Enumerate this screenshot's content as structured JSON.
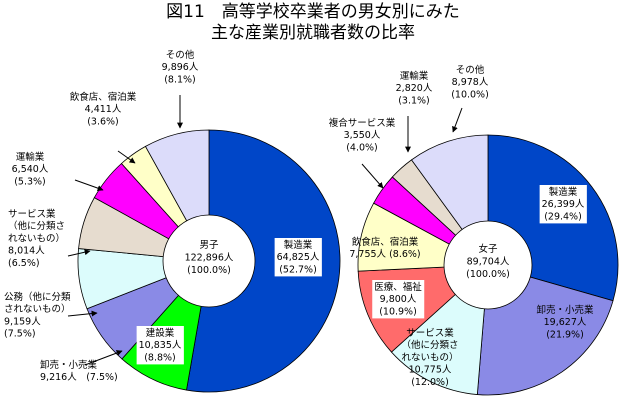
{
  "title": {
    "line1": "図11　高等学校卒業者の男女別にみた",
    "line2": "主な産業別就職者数の比率"
  },
  "chart_data": [
    {
      "type": "pie",
      "center_label": [
        "男子",
        "122,896人",
        "(100.0%)"
      ],
      "total": 122896,
      "slices": [
        {
          "name": "製造業",
          "value": 64825,
          "percent": 52.7,
          "color": "#0046C8",
          "label": [
            "製造業",
            "64,825人",
            "(52.7%)"
          ]
        },
        {
          "name": "建設業",
          "value": 10835,
          "percent": 8.8,
          "color": "#00FF00",
          "label": [
            "建設業",
            "10,835人",
            "(8.8%)"
          ]
        },
        {
          "name": "卸売・小売業",
          "value": 9216,
          "percent": 7.5,
          "color": "#8A8AE6",
          "label": [
            "卸売・小売業",
            "9,216人　(7.5%)"
          ]
        },
        {
          "name": "公務（他に分類されないもの）",
          "value": 9159,
          "percent": 7.5,
          "color": "#DCFCFC",
          "label": [
            "公務（他に分類",
            "されないもの）",
            "9,159人",
            "(7.5%)"
          ]
        },
        {
          "name": "サービス業（他に分類されないもの）",
          "value": 8014,
          "percent": 6.5,
          "color": "#E6DCCF",
          "label": [
            "サービス業",
            "（他に分類さ",
            "れないもの）",
            "8,014人",
            "(6.5%)"
          ]
        },
        {
          "name": "運輸業",
          "value": 6540,
          "percent": 5.3,
          "color": "#FF00FF",
          "label": [
            "運輸業",
            "6,540人",
            "(5.3%)"
          ]
        },
        {
          "name": "飲食店、宿泊業",
          "value": 4411,
          "percent": 3.6,
          "color": "#FFFFC8",
          "label": [
            "飲食店、宿泊業",
            "4,411人",
            "(3.6%)"
          ]
        },
        {
          "name": "その他",
          "value": 9896,
          "percent": 8.1,
          "color": "#DCDCFA",
          "label": [
            "その他",
            "9,896人",
            "(8.1%)"
          ]
        }
      ]
    },
    {
      "type": "pie",
      "center_label": [
        "女子",
        "89,704人",
        "(100.0%)"
      ],
      "total": 89704,
      "slices": [
        {
          "name": "製造業",
          "value": 26399,
          "percent": 29.4,
          "color": "#0046C8",
          "label": [
            "製造業",
            "26,399人",
            "(29.4%)"
          ]
        },
        {
          "name": "卸売・小売業",
          "value": 19627,
          "percent": 21.9,
          "color": "#8A8AE6",
          "label": [
            "卸売・小売業",
            "19,627人",
            "(21.9%)"
          ]
        },
        {
          "name": "サービス業（他に分類されないもの）",
          "value": 10775,
          "percent": 12.0,
          "color": "#DCFCFC",
          "label": [
            "サービス業",
            "（他に分類さ",
            "れないもの）",
            "10,775人",
            "(12.0%)"
          ]
        },
        {
          "name": "医療、福祉",
          "value": 9800,
          "percent": 10.9,
          "color": "#FF6B6B",
          "label": [
            "医療、福祉",
            "9,800人",
            "(10.9%)"
          ]
        },
        {
          "name": "飲食店、宿泊業",
          "value": 7755,
          "percent": 8.6,
          "color": "#FFFFC8",
          "label": [
            "飲食店、宿泊業",
            "7,755人 (8.6%)"
          ]
        },
        {
          "name": "複合サービス業",
          "value": 3550,
          "percent": 4.0,
          "color": "#FF00FF",
          "label": [
            "複合サービス業",
            "3,550人",
            "(4.0%)"
          ]
        },
        {
          "name": "運輸業",
          "value": 2820,
          "percent": 3.1,
          "color": "#E6DCCF",
          "label": [
            "運輸業",
            "2,820人",
            "(3.1%)"
          ]
        },
        {
          "name": "その他",
          "value": 8978,
          "percent": 10.0,
          "color": "#DCDCFA",
          "label": [
            "その他",
            "8,978人",
            "(10.0%)"
          ]
        }
      ]
    }
  ]
}
